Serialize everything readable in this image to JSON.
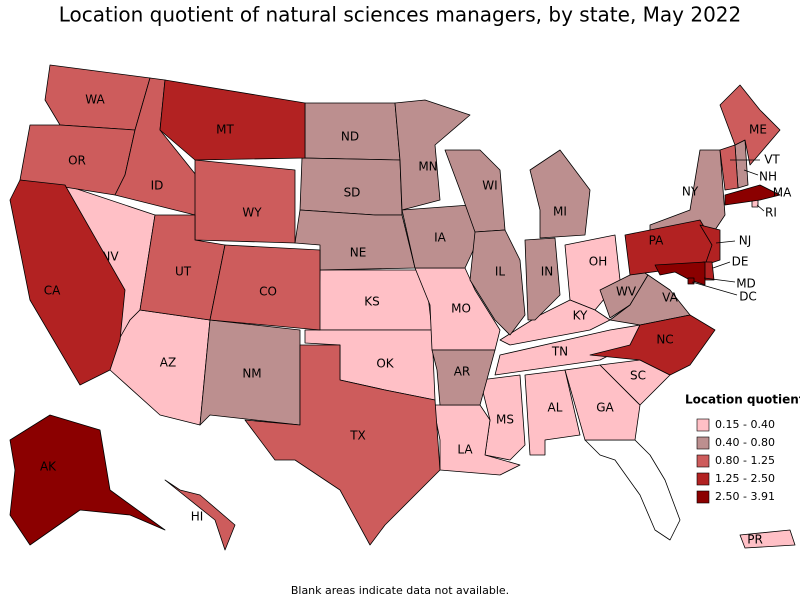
{
  "title": "Location quotient of natural sciences managers, by state, May 2022",
  "footnote": "Blank areas indicate data not available.",
  "legend": {
    "title": "Location quotient",
    "items": [
      {
        "label": "0.15 - 0.40",
        "color": "#ffc0c6",
        "states": [
          "NV",
          "AZ",
          "KS",
          "OK",
          "MO",
          "OH",
          "KY",
          "TN",
          "MS",
          "AL",
          "GA",
          "SC",
          "LA",
          "RI",
          "PR"
        ]
      },
      {
        "label": "0.40 - 0.80",
        "color": "#bc8f8f",
        "states": [
          "ND",
          "SD",
          "NE",
          "MN",
          "IA",
          "WI",
          "IL",
          "IN",
          "MI",
          "NM",
          "AR",
          "WV",
          "VA",
          "NY",
          "NH"
        ]
      },
      {
        "label": "0.80 - 1.25",
        "color": "#cd5c5c",
        "states": [
          "WA",
          "OR",
          "ID",
          "WY",
          "UT",
          "CO",
          "TX",
          "ME",
          "VT",
          "HI"
        ]
      },
      {
        "label": "1.25 - 2.50",
        "color": "#b22222",
        "states": [
          "MT",
          "CA",
          "PA",
          "NC",
          "NJ",
          "DE"
        ]
      },
      {
        "label": "2.50 - 3.91",
        "color": "#8b0000",
        "states": [
          "AK",
          "MA",
          "MD",
          "DC"
        ]
      }
    ]
  }
}
